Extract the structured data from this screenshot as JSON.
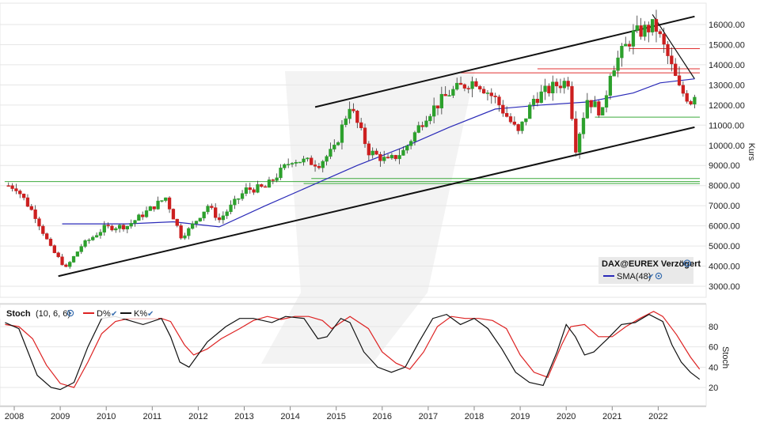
{
  "chart_data": [
    {
      "type": "candlestick",
      "instrument": "DAX@EUREX Verzögert",
      "ylabel": "Kurs",
      "ylim": [
        3000,
        16500
      ],
      "yticks": [
        3000,
        4000,
        5000,
        6000,
        7000,
        8000,
        9000,
        10000,
        11000,
        12000,
        13000,
        14000,
        15000,
        16000
      ],
      "ytick_labels": [
        "3000.00",
        "4000.00",
        "5000.00",
        "6000.00",
        "7000.00",
        "8000.00",
        "9000.00",
        "10000.00",
        "11000.00",
        "12000.00",
        "13000.00",
        "14000.00",
        "15000.00",
        "16000.00"
      ],
      "grid": true,
      "legend": {
        "placement": "bottom-right",
        "title": "DAX@EUREX Verzögert",
        "entries": [
          {
            "name": "SMA(48)",
            "color": "#2a2ab8"
          }
        ]
      },
      "colors": {
        "up": "#2ca02c",
        "down": "#cc1f1f",
        "sma": "#2a2ab8",
        "trend": "#111111",
        "resistance": "#e03030",
        "support": "#3caa3c"
      },
      "anchors": [
        [
          "2007-11",
          8000
        ],
        [
          "2008-01",
          7900
        ],
        [
          "2008-06",
          6500
        ],
        [
          "2008-10",
          4900
        ],
        [
          "2009-02",
          3900
        ],
        [
          "2009-06",
          5000
        ],
        [
          "2009-12",
          5900
        ],
        [
          "2010-06",
          6000
        ],
        [
          "2011-04",
          7400
        ],
        [
          "2011-08",
          5500
        ],
        [
          "2011-10",
          5800
        ],
        [
          "2012-03",
          7000
        ],
        [
          "2012-06",
          6300
        ],
        [
          "2013-01",
          7800
        ],
        [
          "2013-06",
          7900
        ],
        [
          "2014-01",
          9300
        ],
        [
          "2014-08",
          9100
        ],
        [
          "2014-12",
          9800
        ],
        [
          "2015-04",
          12000
        ],
        [
          "2015-09",
          9700
        ],
        [
          "2016-02",
          9200
        ],
        [
          "2016-06",
          9700
        ],
        [
          "2016-12",
          11500
        ],
        [
          "2017-06",
          12600
        ],
        [
          "2017-11",
          13100
        ],
        [
          "2018-01",
          13200
        ],
        [
          "2018-06",
          12300
        ],
        [
          "2018-12",
          10600
        ],
        [
          "2019-04",
          12300
        ],
        [
          "2019-10",
          13000
        ],
        [
          "2020-01",
          13200
        ],
        [
          "2020-03",
          9900
        ],
        [
          "2020-06",
          12300
        ],
        [
          "2020-10",
          11600
        ],
        [
          "2020-12",
          13700
        ],
        [
          "2021-06",
          15500
        ],
        [
          "2021-11",
          15900
        ],
        [
          "2021-12",
          15800
        ],
        [
          "2022-03",
          14400
        ],
        [
          "2022-06",
          12800
        ],
        [
          "2022-09",
          12200
        ],
        [
          "2022-10",
          12600
        ]
      ],
      "sma48": [
        [
          "2009-01",
          6100
        ],
        [
          "2010-06",
          6100
        ],
        [
          "2011-06",
          6200
        ],
        [
          "2012-06",
          5950
        ],
        [
          "2013-06",
          7000
        ],
        [
          "2014-06",
          8000
        ],
        [
          "2015-06",
          9000
        ],
        [
          "2016-06",
          9900
        ],
        [
          "2017-06",
          10900
        ],
        [
          "2018-06",
          11800
        ],
        [
          "2019-06",
          12000
        ],
        [
          "2020-06",
          12150
        ],
        [
          "2021-06",
          12600
        ],
        [
          "2022-01",
          13100
        ],
        [
          "2022-10",
          13300
        ]
      ],
      "trend_lines": [
        {
          "from": [
            "2008-12",
            3500
          ],
          "to": [
            "2022-10",
            10900
          ]
        },
        {
          "from": [
            "2014-07",
            11900
          ],
          "to": [
            "2022-10",
            16400
          ]
        },
        {
          "from": [
            "2021-11",
            16500
          ],
          "to": [
            "2022-10",
            13300
          ]
        }
      ],
      "horizontal_levels": [
        {
          "kind": "resistance",
          "value": 14800,
          "from": "2021-05"
        },
        {
          "kind": "resistance",
          "value": 13800,
          "from": "2019-05"
        },
        {
          "kind": "resistance",
          "value": 13600,
          "from": "2017-09"
        },
        {
          "kind": "support",
          "value": 11400,
          "from": "2020-08"
        },
        {
          "kind": "support",
          "value": 8350,
          "from": "2014-06"
        },
        {
          "kind": "support",
          "value": 8200,
          "from": "2007-10"
        },
        {
          "kind": "support",
          "value": 8100,
          "from": "2014-04"
        }
      ]
    },
    {
      "type": "line",
      "title": "Stoch",
      "params": "(10, 6, 6)",
      "ylabel": "Stoch",
      "ylim": [
        0,
        100
      ],
      "yticks": [
        20,
        40,
        60,
        80
      ],
      "series": [
        {
          "name": "D%",
          "color": "#dd2222",
          "values": [
            [
              2007.8,
              82
            ],
            [
              2008.1,
              80
            ],
            [
              2008.4,
              68
            ],
            [
              2008.7,
              42
            ],
            [
              2009.0,
              24
            ],
            [
              2009.3,
              20
            ],
            [
              2009.6,
              45
            ],
            [
              2009.9,
              73
            ],
            [
              2010.2,
              85
            ],
            [
              2010.5,
              88
            ],
            [
              2010.9,
              88
            ],
            [
              2011.2,
              88
            ],
            [
              2011.4,
              85
            ],
            [
              2011.7,
              62
            ],
            [
              2011.9,
              52
            ],
            [
              2012.2,
              58
            ],
            [
              2012.5,
              68
            ],
            [
              2012.9,
              78
            ],
            [
              2013.2,
              86
            ],
            [
              2013.5,
              90
            ],
            [
              2013.8,
              87
            ],
            [
              2014.1,
              90
            ],
            [
              2014.4,
              90
            ],
            [
              2014.7,
              86
            ],
            [
              2014.9,
              78
            ],
            [
              2015.1,
              84
            ],
            [
              2015.3,
              90
            ],
            [
              2015.7,
              78
            ],
            [
              2016.0,
              55
            ],
            [
              2016.3,
              44
            ],
            [
              2016.6,
              38
            ],
            [
              2016.9,
              55
            ],
            [
              2017.2,
              80
            ],
            [
              2017.5,
              90
            ],
            [
              2017.8,
              88
            ],
            [
              2018.1,
              88
            ],
            [
              2018.4,
              86
            ],
            [
              2018.7,
              78
            ],
            [
              2019.0,
              52
            ],
            [
              2019.3,
              35
            ],
            [
              2019.6,
              30
            ],
            [
              2019.9,
              62
            ],
            [
              2020.1,
              80
            ],
            [
              2020.4,
              82
            ],
            [
              2020.7,
              70
            ],
            [
              2021.0,
              70
            ],
            [
              2021.3,
              80
            ],
            [
              2021.6,
              88
            ],
            [
              2021.9,
              95
            ],
            [
              2022.1,
              90
            ],
            [
              2022.4,
              72
            ],
            [
              2022.7,
              50
            ],
            [
              2022.9,
              38
            ]
          ]
        },
        {
          "name": "K%",
          "color": "#111111",
          "values": [
            [
              2007.8,
              84
            ],
            [
              2008.1,
              78
            ],
            [
              2008.3,
              55
            ],
            [
              2008.5,
              32
            ],
            [
              2008.8,
              20
            ],
            [
              2009.0,
              18
            ],
            [
              2009.3,
              25
            ],
            [
              2009.6,
              60
            ],
            [
              2009.9,
              88
            ],
            [
              2010.2,
              90
            ],
            [
              2010.5,
              86
            ],
            [
              2010.8,
              82
            ],
            [
              2011.2,
              88
            ],
            [
              2011.4,
              70
            ],
            [
              2011.6,
              45
            ],
            [
              2011.8,
              40
            ],
            [
              2012.2,
              65
            ],
            [
              2012.6,
              80
            ],
            [
              2012.9,
              88
            ],
            [
              2013.2,
              88
            ],
            [
              2013.6,
              84
            ],
            [
              2013.9,
              90
            ],
            [
              2014.3,
              88
            ],
            [
              2014.6,
              68
            ],
            [
              2014.8,
              70
            ],
            [
              2015.1,
              88
            ],
            [
              2015.3,
              84
            ],
            [
              2015.6,
              55
            ],
            [
              2015.9,
              40
            ],
            [
              2016.2,
              35
            ],
            [
              2016.5,
              40
            ],
            [
              2016.8,
              65
            ],
            [
              2017.1,
              88
            ],
            [
              2017.4,
              92
            ],
            [
              2017.7,
              82
            ],
            [
              2018.0,
              88
            ],
            [
              2018.3,
              78
            ],
            [
              2018.6,
              58
            ],
            [
              2018.9,
              35
            ],
            [
              2019.2,
              25
            ],
            [
              2019.5,
              22
            ],
            [
              2019.8,
              55
            ],
            [
              2020.0,
              82
            ],
            [
              2020.2,
              70
            ],
            [
              2020.4,
              52
            ],
            [
              2020.6,
              55
            ],
            [
              2020.9,
              68
            ],
            [
              2021.2,
              82
            ],
            [
              2021.5,
              84
            ],
            [
              2021.8,
              92
            ],
            [
              2022.1,
              85
            ],
            [
              2022.3,
              62
            ],
            [
              2022.5,
              45
            ],
            [
              2022.7,
              35
            ],
            [
              2022.9,
              28
            ]
          ]
        }
      ]
    }
  ],
  "x_axis": {
    "years": [
      "2008",
      "2009",
      "2010",
      "2011",
      "2012",
      "2013",
      "2014",
      "2015",
      "2016",
      "2017",
      "2018",
      "2019",
      "2020",
      "2021",
      "2022"
    ]
  },
  "stoch_panel": {
    "title": "Stoch",
    "params": "(10, 6, 6)",
    "d_label": "D%",
    "k_label": "K%",
    "ylabel": "Stoch",
    "yticks": [
      "20",
      "40",
      "60",
      "80"
    ]
  }
}
